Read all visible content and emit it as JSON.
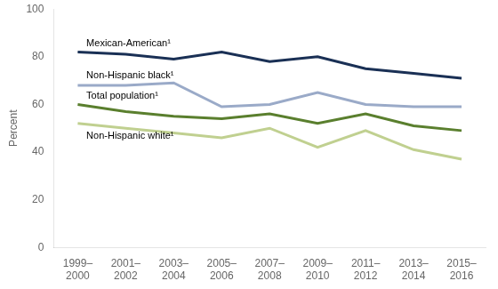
{
  "chart_data": {
    "type": "line",
    "categories": [
      "1999–\n2000",
      "2001–\n2002",
      "2003–\n2004",
      "2005–\n2006",
      "2007–\n2008",
      "2009–\n2010",
      "2011–\n2012",
      "2013–\n2014",
      "2015–\n2016"
    ],
    "series": [
      {
        "name": "Mexican-American¹",
        "color": "#1a3055",
        "values": [
          82,
          81,
          79,
          82,
          78,
          80,
          75,
          73,
          71
        ]
      },
      {
        "name": "Non-Hispanic black¹",
        "color": "#9aaac8",
        "values": [
          68,
          68,
          69,
          59,
          60,
          65,
          60,
          59,
          59
        ]
      },
      {
        "name": "Total population¹",
        "color": "#5a7f2e",
        "values": [
          60,
          57,
          55,
          54,
          56,
          52,
          56,
          51,
          49
        ]
      },
      {
        "name": "Non-Hispanic white¹",
        "color": "#c0d090",
        "values": [
          52,
          50,
          48,
          46,
          50,
          42,
          49,
          41,
          37
        ]
      }
    ],
    "annotations": [
      {
        "text": "Mexican-American¹",
        "x": 0.18,
        "y": 83.5
      },
      {
        "text": "Non-Hispanic black¹",
        "x": 0.18,
        "y": 70.0
      },
      {
        "text": "Total population¹",
        "x": 0.18,
        "y": 61.5
      },
      {
        "text": "Non-Hispanic white¹",
        "x": 0.18,
        "y": 44.5
      }
    ],
    "ylabel": "Percent",
    "ylim": [
      0,
      100
    ],
    "yticks": [
      0,
      20,
      40,
      60,
      80,
      100
    ],
    "grid": false
  }
}
